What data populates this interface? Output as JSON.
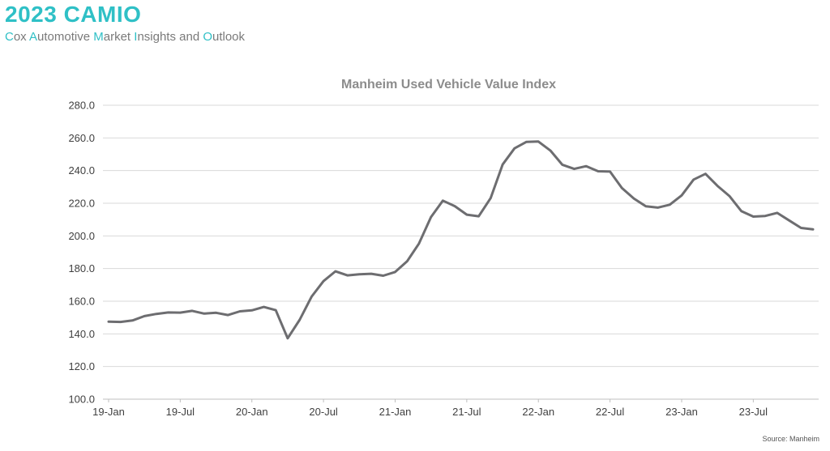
{
  "header": {
    "title": "2023 CAMIO",
    "subtitle_parts": [
      {
        "text": "C",
        "accent": true
      },
      {
        "text": "ox ",
        "accent": false
      },
      {
        "text": "A",
        "accent": true
      },
      {
        "text": "utomotive ",
        "accent": false
      },
      {
        "text": "M",
        "accent": true
      },
      {
        "text": "arket ",
        "accent": false
      },
      {
        "text": "I",
        "accent": true
      },
      {
        "text": "nsights and ",
        "accent": false
      },
      {
        "text": "O",
        "accent": true
      },
      {
        "text": "utlook",
        "accent": false
      }
    ]
  },
  "colors": {
    "accent": "#2fc0c6",
    "line": "#6d6d70",
    "grid": "#d9d9d9",
    "axis": "#bfbfbf",
    "title": "#8c8c8c"
  },
  "source": "Source: Manheim",
  "chart_data": {
    "type": "line",
    "title": "Manheim Used Vehicle Value Index",
    "xlabel": "",
    "ylabel": "",
    "ylim": [
      100,
      280
    ],
    "yticks": [
      "100.0",
      "120.0",
      "140.0",
      "160.0",
      "180.0",
      "200.0",
      "220.0",
      "240.0",
      "260.0",
      "280.0"
    ],
    "xtick_labels": [
      "19-Jan",
      "19-Jul",
      "20-Jan",
      "20-Jul",
      "21-Jan",
      "21-Jul",
      "22-Jan",
      "22-Jul",
      "23-Jan",
      "23-Jul"
    ],
    "grid": true,
    "legend": "none",
    "series": [
      {
        "values": [
          147.5,
          147.3,
          148.2,
          150.9,
          152.2,
          153.1,
          153.0,
          154.1,
          152.4,
          152.9,
          151.5,
          153.8,
          154.4,
          156.5,
          154.5,
          137.3,
          148.6,
          162.8,
          172.3,
          178.3,
          175.8,
          176.5,
          176.8,
          175.6,
          177.9,
          184.4,
          195.3,
          211.5,
          221.6,
          218.2,
          213.0,
          212.0,
          223.1,
          243.7,
          253.6,
          257.6,
          257.8,
          252.3,
          243.6,
          241.0,
          242.7,
          239.6,
          239.4,
          229.3,
          222.9,
          218.1,
          217.3,
          219.1,
          224.8,
          234.5,
          238.0,
          230.6,
          224.4,
          215.2,
          211.8,
          212.2,
          214.1,
          209.5,
          204.9,
          204.0
        ]
      }
    ]
  }
}
